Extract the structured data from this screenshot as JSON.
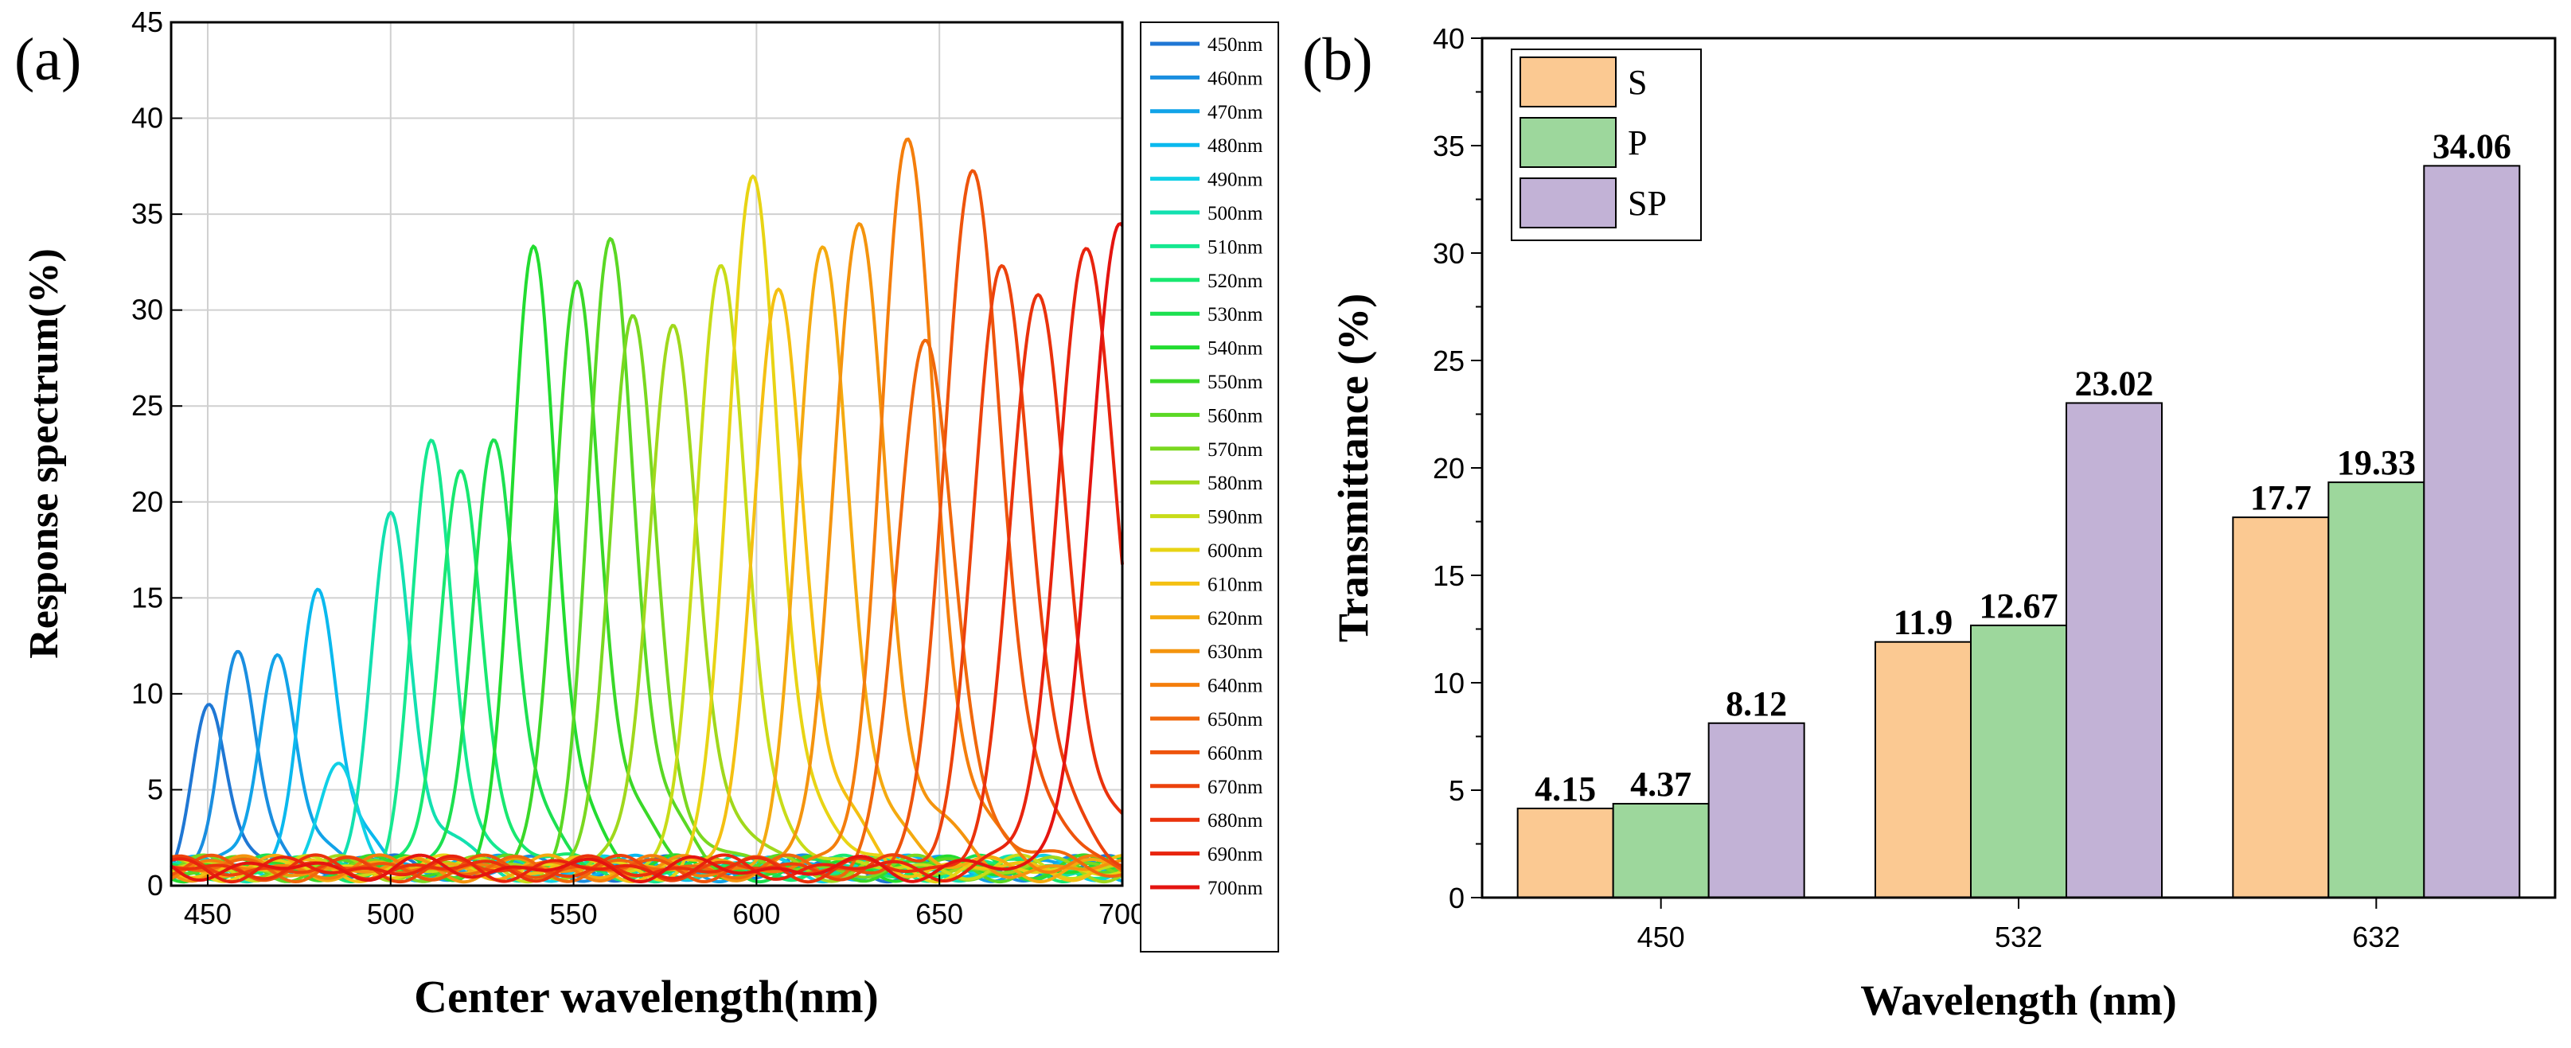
{
  "chart_data": [
    {
      "panel": "(a)",
      "type": "line",
      "title": "",
      "xlabel": "Center wavelength(nm)",
      "ylabel": "Response spectrum(%)",
      "xlim": [
        440,
        700
      ],
      "ylim": [
        0,
        45
      ],
      "xticks": [
        450,
        500,
        550,
        600,
        650,
        700
      ],
      "yticks": [
        0,
        5,
        10,
        15,
        20,
        25,
        30,
        35,
        40,
        45
      ],
      "grid": true,
      "legend_position": "right outside",
      "series": [
        {
          "name": "450nm",
          "center": 450,
          "peak": 8.3,
          "color": "#1f77d4"
        },
        {
          "name": "460nm",
          "center": 458,
          "peak": 11.0,
          "color": "#1a8ee0"
        },
        {
          "name": "470nm",
          "center": 469,
          "peak": 11.6,
          "color": "#12a3e8"
        },
        {
          "name": "480nm",
          "center": 480,
          "peak": 14.6,
          "color": "#0ab9ee"
        },
        {
          "name": "490nm",
          "center": 486,
          "peak": 4.8,
          "color": "#10d0e6"
        },
        {
          "name": "500nm",
          "center": 500,
          "peak": 18.4,
          "color": "#12e0b0"
        },
        {
          "name": "510nm",
          "center": 511,
          "peak": 21.4,
          "color": "#15e890"
        },
        {
          "name": "520nm",
          "center": 519,
          "peak": 20.5,
          "color": "#18e870"
        },
        {
          "name": "530nm",
          "center": 528,
          "peak": 22.7,
          "color": "#1ce050"
        },
        {
          "name": "540nm",
          "center": 539,
          "peak": 32.0,
          "color": "#22dc30"
        },
        {
          "name": "550nm",
          "center": 551,
          "peak": 30.7,
          "color": "#3ad828"
        },
        {
          "name": "560nm",
          "center": 560,
          "peak": 32.2,
          "color": "#5ad824"
        },
        {
          "name": "570nm",
          "center": 566,
          "peak": 28.0,
          "color": "#7ad820"
        },
        {
          "name": "580nm",
          "center": 577,
          "peak": 28.4,
          "color": "#a0d81c"
        },
        {
          "name": "590nm",
          "center": 590,
          "peak": 31.0,
          "color": "#c8dc18"
        },
        {
          "name": "600nm",
          "center": 599,
          "peak": 35.9,
          "color": "#e8d414"
        },
        {
          "name": "610nm",
          "center": 606,
          "peak": 30.0,
          "color": "#f4c012"
        },
        {
          "name": "620nm",
          "center": 618,
          "peak": 31.4,
          "color": "#f4aa10"
        },
        {
          "name": "630nm",
          "center": 628,
          "peak": 33.0,
          "color": "#f4940e"
        },
        {
          "name": "640nm",
          "center": 641,
          "peak": 37.3,
          "color": "#f47e0c"
        },
        {
          "name": "650nm",
          "center": 646,
          "peak": 27.2,
          "color": "#f0680c"
        },
        {
          "name": "660nm",
          "center": 659,
          "peak": 36.6,
          "color": "#ee540c"
        },
        {
          "name": "670nm",
          "center": 667,
          "peak": 31.0,
          "color": "#ec420c"
        },
        {
          "name": "680nm",
          "center": 677,
          "peak": 29.0,
          "color": "#ea320c"
        },
        {
          "name": "690nm",
          "center": 690,
          "peak": 31.9,
          "color": "#e8240e"
        },
        {
          "name": "700nm",
          "center": 699,
          "peak": 32.7,
          "color": "#e41410"
        }
      ]
    },
    {
      "panel": "(b)",
      "type": "bar",
      "title": "",
      "xlabel": "Wavelength (nm)",
      "ylabel": "Transmittance (%)",
      "categories": [
        "450",
        "532",
        "632"
      ],
      "ylim": [
        0,
        40
      ],
      "yticks": [
        0,
        5,
        10,
        15,
        20,
        25,
        30,
        35,
        40
      ],
      "grid": false,
      "legend_position": "top-left",
      "series": [
        {
          "name": "S",
          "color": "#fbc992",
          "values": [
            4.15,
            11.9,
            17.7
          ],
          "labels": [
            "4.15",
            "11.9",
            "17.7"
          ]
        },
        {
          "name": "P",
          "color": "#9dd79c",
          "values": [
            4.37,
            12.67,
            19.33
          ],
          "labels": [
            "4.37",
            "12.67",
            "19.33"
          ]
        },
        {
          "name": "SP",
          "color": "#c2b2d6",
          "values": [
            8.12,
            23.02,
            34.06
          ],
          "labels": [
            "8.12",
            "23.02",
            "34.06"
          ]
        }
      ]
    }
  ]
}
